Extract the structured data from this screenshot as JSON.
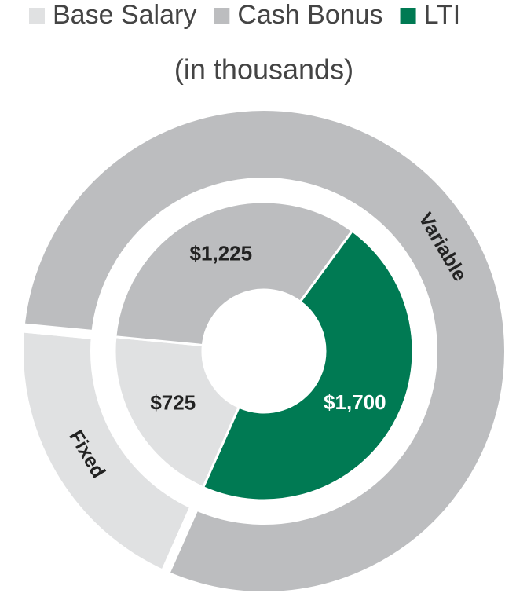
{
  "chart_data": {
    "type": "nested-donut",
    "subtitle": "(in thousands)",
    "categories": [
      "Base Salary",
      "Cash Bonus",
      "LTI"
    ],
    "values": [
      725,
      1225,
      1700
    ],
    "value_labels": [
      "$725",
      "$1,225",
      "$1,700"
    ],
    "colors": [
      "#e0e1e2",
      "#bcbdbf",
      "#007a53"
    ],
    "outer": {
      "categories": [
        "Fixed",
        "Variable"
      ],
      "values": [
        725,
        2925
      ],
      "colors": [
        "#e0e1e2",
        "#bcbdbf"
      ]
    }
  }
}
